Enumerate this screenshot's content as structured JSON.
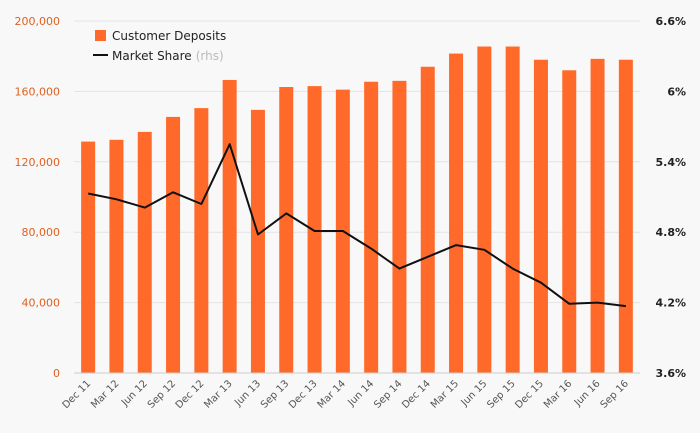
{
  "chart_data": {
    "type": "bar",
    "categories": [
      "Dec 11",
      "Mar 12",
      "Jun 12",
      "Sep 12",
      "Dec 12",
      "Mar 13",
      "Jun 13",
      "Sep 13",
      "Dec 13",
      "Mar 14",
      "Jun 14",
      "Sep 14",
      "Dec 14",
      "Mar 15",
      "Jun 15",
      "Sep 15",
      "Dec 15",
      "Mar 16",
      "Jun 16",
      "Sep 16"
    ],
    "series": [
      {
        "name": "Customer Deposits",
        "type": "bar",
        "axis": "left",
        "values": [
          131500,
          132500,
          137000,
          145500,
          150500,
          166500,
          149500,
          162500,
          163000,
          161000,
          165500,
          166000,
          174000,
          181500,
          185500,
          185500,
          178000,
          172000,
          178500,
          178000
        ]
      },
      {
        "name": "Market Share",
        "type": "line",
        "axis": "right",
        "unit": "%",
        "values": [
          5.13,
          5.08,
          5.01,
          5.14,
          5.04,
          5.55,
          4.78,
          4.96,
          4.81,
          4.81,
          4.66,
          4.49,
          4.59,
          4.69,
          4.65,
          4.49,
          4.37,
          4.19,
          4.2,
          4.17
        ]
      }
    ],
    "legend": {
      "deposits_label": "Customer Deposits",
      "share_label": "Market Share",
      "share_suffix": "(rhs)"
    },
    "left_axis": {
      "ylim": [
        0,
        200000
      ],
      "ticks": [
        0,
        40000,
        80000,
        120000,
        160000,
        200000
      ],
      "tick_labels": [
        "0",
        "40,000",
        "80,000",
        "120,000",
        "160,000",
        "200,000"
      ]
    },
    "right_axis": {
      "ylim": [
        3.6,
        6.6
      ],
      "ticks": [
        3.6,
        4.2,
        4.8,
        5.4,
        6.0,
        6.6
      ],
      "tick_labels": [
        "3.6%",
        "4.2%",
        "4.8%",
        "5.4%",
        "6%",
        "6.6%"
      ]
    },
    "colors": {
      "bar": "#ff6a2a",
      "line": "#111111",
      "grid": "#e3e3e3",
      "left_tick": "#e06020"
    },
    "grid": true,
    "legend_placement": "top-left"
  }
}
